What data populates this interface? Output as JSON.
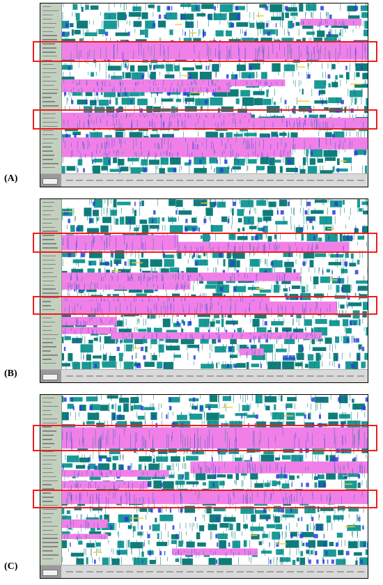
{
  "panels": [
    {
      "label": "(A)",
      "pink_rows": [
        [
          4.5,
          6.6,
          0.0,
          1.0
        ],
        [
          8.9,
          9.7,
          0.0,
          0.73
        ],
        [
          9.7,
          10.4,
          0.0,
          0.55
        ],
        [
          12.8,
          13.5,
          0.0,
          0.62
        ],
        [
          13.4,
          14.6,
          0.0,
          1.0
        ],
        [
          15.7,
          17.1,
          0.0,
          1.0
        ],
        [
          17.1,
          18.0,
          0.0,
          0.75
        ],
        [
          1.8,
          2.6,
          0.78,
          0.98
        ]
      ],
      "highlights": [
        [
          4.3,
          6.8
        ],
        [
          12.3,
          14.7
        ]
      ]
    },
    {
      "label": "(B)",
      "pink_rows": [
        [
          4.2,
          6.0,
          0.0,
          0.38
        ],
        [
          5.0,
          6.2,
          0.38,
          0.94
        ],
        [
          8.6,
          9.6,
          0.0,
          0.78
        ],
        [
          9.6,
          10.6,
          0.0,
          0.42
        ],
        [
          11.4,
          12.5,
          0.0,
          0.68
        ],
        [
          12.0,
          13.4,
          0.0,
          0.9
        ],
        [
          13.8,
          14.8,
          0.0,
          0.18
        ],
        [
          15.0,
          15.8,
          0.0,
          0.18
        ],
        [
          15.6,
          16.4,
          0.16,
          0.85
        ],
        [
          17.5,
          18.3,
          0.58,
          0.66
        ]
      ],
      "highlights": [
        [
          3.8,
          6.2
        ],
        [
          11.3,
          13.5
        ]
      ]
    },
    {
      "label": "(C)",
      "pink_rows": [
        [
          3.8,
          6.3,
          0.0,
          1.0
        ],
        [
          7.8,
          9.2,
          0.42,
          1.0
        ],
        [
          8.8,
          9.6,
          0.0,
          0.35
        ],
        [
          10.1,
          11.0,
          0.0,
          0.28
        ],
        [
          11.2,
          12.8,
          0.0,
          1.0
        ],
        [
          14.6,
          15.6,
          0.0,
          0.15
        ],
        [
          16.3,
          16.9,
          0.0,
          0.15
        ],
        [
          18.0,
          18.8,
          0.36,
          0.64
        ]
      ],
      "highlights": [
        [
          3.4,
          6.5
        ],
        [
          11.0,
          13.2
        ]
      ]
    }
  ],
  "colors": {
    "teal": "#1a9a96",
    "dark_teal": "#0e7d7a",
    "pink": "#f080e8",
    "blue": "#2a3ee0",
    "yellow": "#f0d020",
    "frame": "#000000",
    "highlight": "#ee1c1c"
  },
  "rows_total": 20
}
